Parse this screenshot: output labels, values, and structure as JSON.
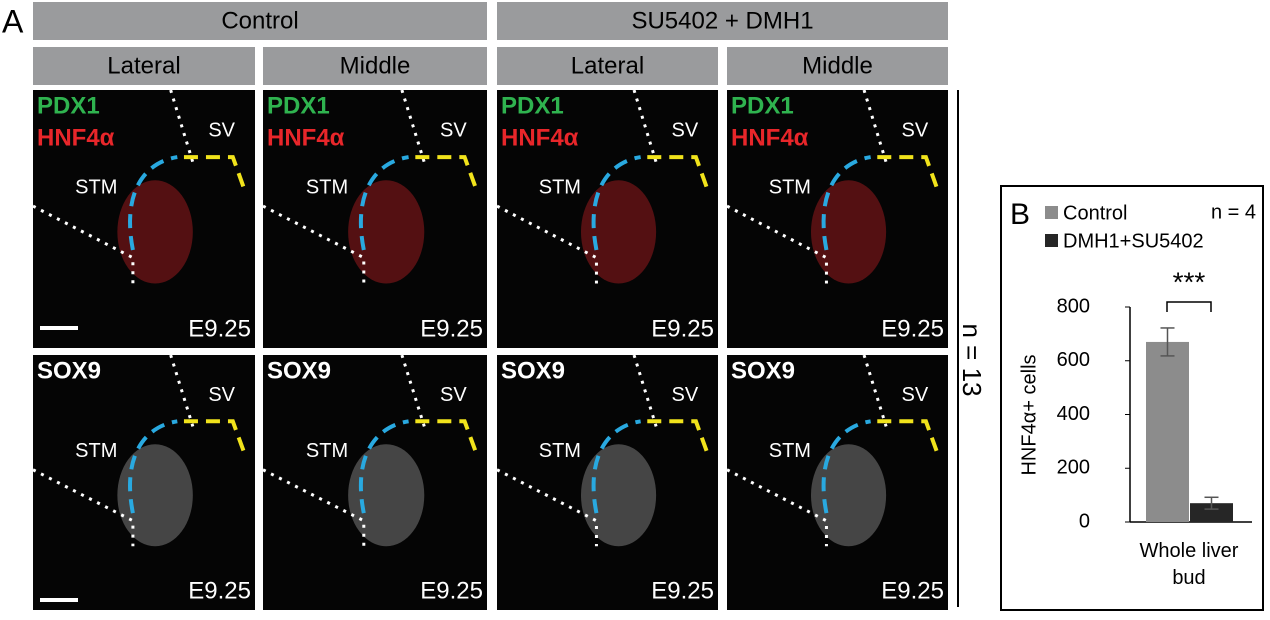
{
  "panel_a": {
    "label": "A",
    "groups": [
      {
        "title": "Control",
        "views": [
          "Lateral",
          "Middle"
        ]
      },
      {
        "title": "SU5402 + DMH1",
        "views": [
          "Lateral",
          "Middle"
        ]
      }
    ],
    "rows": [
      {
        "markers": [
          "PDX1",
          "HNF4α"
        ],
        "colors": [
          "#2fb34f",
          "#e8262a"
        ]
      },
      {
        "markers": [
          "SOX9"
        ],
        "colors": [
          "#ffffff"
        ]
      }
    ],
    "region_labels": [
      "SV",
      "STM"
    ],
    "stage": "E9.25",
    "n_label": "n = 13"
  },
  "chart_data": {
    "type": "bar",
    "label": "B",
    "y_label": "HNF4α+ cells",
    "categories": [
      "Whole liver bud"
    ],
    "series": [
      {
        "name": "Control",
        "color": "#8c8c8c",
        "values": [
          670
        ],
        "errors": [
          52
        ]
      },
      {
        "name": "DMH1+SU5402",
        "color": "#262626",
        "values": [
          70
        ],
        "errors": [
          22
        ]
      }
    ],
    "ylim": [
      0,
      800
    ],
    "yticks": [
      0,
      200,
      400,
      600,
      800
    ],
    "significance": "***",
    "n_label": "n = 4"
  }
}
